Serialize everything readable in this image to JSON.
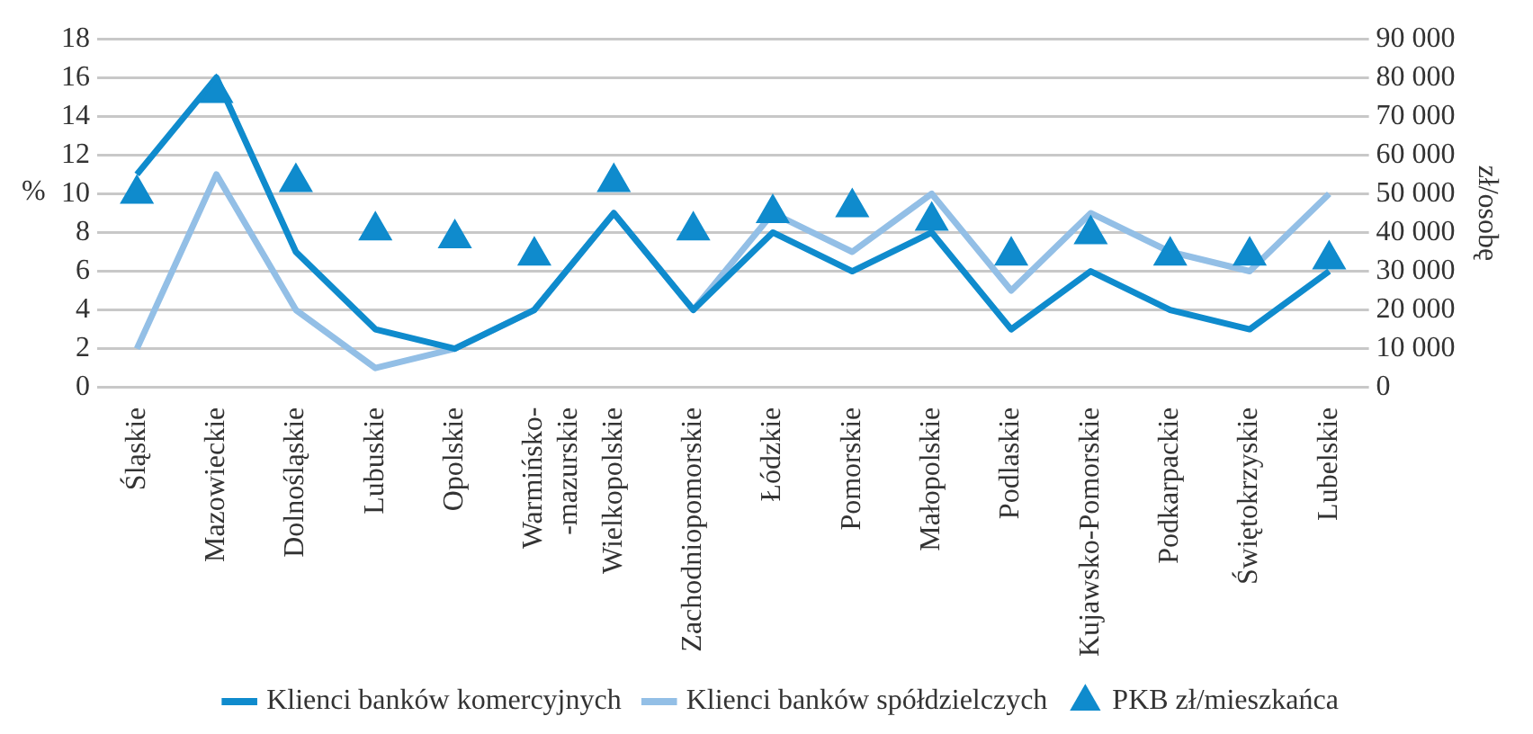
{
  "chart_data": {
    "type": "line",
    "ylabel": "%",
    "y2label": "zł/osobę",
    "categories": [
      "Śląskie",
      "Mazowieckie",
      "Dolnośląskie",
      "Lubuskie",
      "Opolskie",
      "Warmińsko-\n-mazurskie",
      "Wielkopolskie",
      "Zachodniopomorskie",
      "Łódzkie",
      "Pomorskie",
      "Małopolskie",
      "Podlaskie",
      "Kujawsko-Pomorskie",
      "Podkarpackie",
      "Świętokrzyskie",
      "Lubelskie"
    ],
    "series": [
      {
        "name": "Klienci banków komercyjnych",
        "color": "#0f8bcd",
        "values": [
          11,
          16,
          7,
          3,
          2,
          4,
          9,
          4,
          8,
          6,
          8,
          3,
          6,
          4,
          3,
          6
        ]
      },
      {
        "name": "Klienci banków spółdzielczych",
        "color": "#93bfe6",
        "values": [
          2,
          11,
          4,
          1,
          2,
          4,
          9,
          4,
          9,
          7,
          10,
          5,
          9,
          7,
          6,
          10
        ]
      },
      {
        "name": "PKB zł/mieszkańca",
        "type": "scatter",
        "marker": "triangle",
        "axis": "y2",
        "color": "#0f8bcd",
        "values": [
          50000,
          76000,
          53000,
          40500,
          38500,
          34000,
          53000,
          40500,
          45000,
          46500,
          43000,
          34000,
          39500,
          34000,
          34000,
          33000
        ]
      }
    ],
    "ylim": [
      0,
      18
    ],
    "yticks": [
      0,
      2,
      4,
      6,
      8,
      10,
      12,
      14,
      16,
      18
    ],
    "y2lim": [
      0,
      90000
    ],
    "y2ticks": [
      0,
      {
        "value": 10000,
        "label": "10 000"
      },
      {
        "value": 20000,
        "label": "20 000"
      },
      {
        "value": 30000,
        "label": "30 000"
      },
      {
        "value": 40000,
        "label": "40 000"
      },
      {
        "value": 50000,
        "label": "50 000"
      },
      {
        "value": 60000,
        "label": "60 000"
      },
      {
        "value": 70000,
        "label": "70 000"
      },
      {
        "value": 80000,
        "label": "80 000"
      },
      {
        "value": 90000,
        "label": "90 000"
      }
    ],
    "grid": "y",
    "legend": "bottom"
  }
}
